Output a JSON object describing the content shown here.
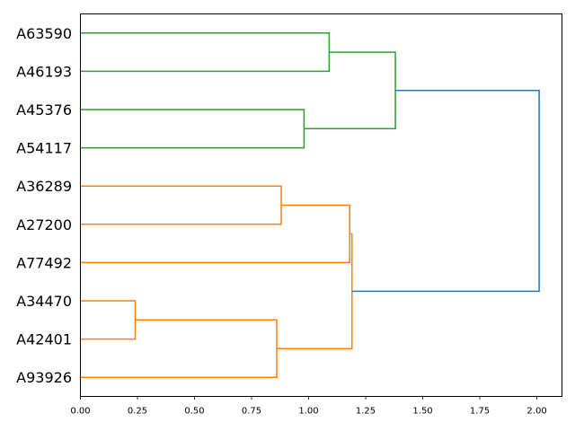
{
  "chart_data": {
    "type": "dendrogram",
    "orientation": "left",
    "title": "",
    "xlabel": "",
    "ylabel": "",
    "xlim": [
      0,
      2.11
    ],
    "x_ticks": [
      "0.00",
      "0.25",
      "0.50",
      "0.75",
      "1.00",
      "1.25",
      "1.50",
      "1.75",
      "2.00"
    ],
    "grid": false,
    "leaves": [
      "A63590",
      "A46193",
      "A45376",
      "A54117",
      "A36289",
      "A27200",
      "A77492",
      "A34470",
      "A42401",
      "A93926"
    ],
    "merges": [
      {
        "a": 0,
        "b": 1,
        "height": 1.09,
        "color": "#2ca02c"
      },
      {
        "a": 2,
        "b": 3,
        "height": 0.98,
        "color": "#2ca02c"
      },
      {
        "a": 10,
        "b": 11,
        "height": 1.38,
        "color": "#2ca02c"
      },
      {
        "a": 4,
        "b": 5,
        "height": 0.88,
        "color": "#ff7f0e"
      },
      {
        "a": 7,
        "b": 8,
        "height": 0.24,
        "color": "#ff7f0e"
      },
      {
        "a": 14,
        "b": 9,
        "height": 0.86,
        "color": "#ff7f0e"
      },
      {
        "a": 13,
        "b": 6,
        "height": 1.18,
        "color": "#ff7f0e"
      },
      {
        "a": 16,
        "b": 15,
        "height": 1.19,
        "color": "#ff7f0e"
      },
      {
        "a": 12,
        "b": 17,
        "height": 2.01,
        "color": "#1f77b4"
      }
    ]
  }
}
